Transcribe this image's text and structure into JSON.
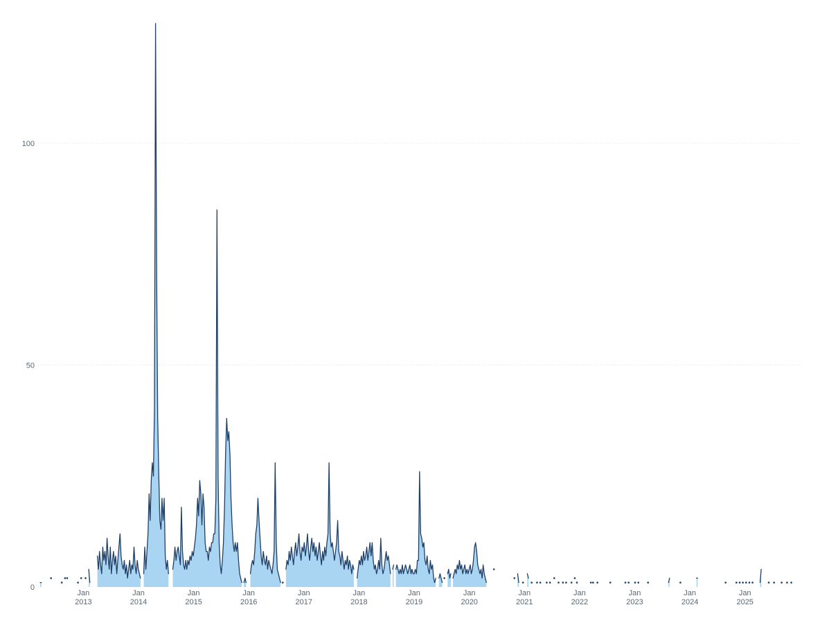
{
  "chart_data": {
    "type": "area",
    "title": "",
    "xlabel": "",
    "ylabel": "",
    "legend": "none",
    "grid": "horizontal-dotted",
    "x_step": "week",
    "ylim": [
      0,
      129
    ],
    "y_axis": {
      "values": [
        0,
        50,
        100
      ],
      "tick_labels": [
        "0",
        "50",
        "100"
      ]
    },
    "x_axis": {
      "tick_labels": [
        {
          "month": "Jan",
          "year": "2013"
        },
        {
          "month": "Jan",
          "year": "2014"
        },
        {
          "month": "Jan",
          "year": "2015"
        },
        {
          "month": "Jan",
          "year": "2016"
        },
        {
          "month": "Jan",
          "year": "2017"
        },
        {
          "month": "Jan",
          "year": "2018"
        },
        {
          "month": "Jan",
          "year": "2019"
        },
        {
          "month": "Jan",
          "year": "2020"
        },
        {
          "month": "Jan",
          "year": "2021"
        },
        {
          "month": "Jan",
          "year": "2022"
        },
        {
          "month": "Jan",
          "year": "2023"
        },
        {
          "month": "Jan",
          "year": "2024"
        },
        {
          "month": "Jan",
          "year": "2025"
        }
      ]
    },
    "colors": {
      "line": "#1f3f66",
      "fill": "#a9d4f2",
      "grid": "#e0e0e0",
      "tick_text": "#5b6672"
    },
    "series": [
      {
        "values": [
          0,
          0,
          1,
          1,
          0,
          0,
          0,
          0,
          0,
          0,
          0,
          0,
          2,
          0,
          0,
          0,
          0,
          0,
          0,
          0,
          0,
          0,
          1,
          0,
          0,
          2,
          0,
          2,
          0,
          0,
          0,
          0,
          0,
          0,
          0,
          0,
          0,
          1,
          0,
          0,
          2,
          0,
          0,
          0,
          2,
          0,
          0,
          4,
          1,
          0,
          0,
          0,
          0,
          0,
          0,
          7,
          4,
          8,
          5,
          3,
          9,
          6,
          8,
          5,
          11,
          7,
          4,
          9,
          3,
          6,
          8,
          5,
          7,
          3,
          6,
          9,
          12,
          7,
          5,
          4,
          6,
          3,
          5,
          2,
          4,
          6,
          3,
          5,
          4,
          9,
          5,
          3,
          6,
          4,
          3,
          2,
          0,
          0,
          3,
          9,
          4,
          8,
          12,
          21,
          15,
          24,
          28,
          25,
          40,
          127,
          70,
          38,
          25,
          15,
          13,
          20,
          15,
          20,
          7,
          4,
          6,
          3,
          0,
          0,
          0,
          4,
          6,
          9,
          6,
          8,
          9,
          7,
          5,
          18,
          8,
          5,
          4,
          6,
          4,
          6,
          5,
          7,
          6,
          8,
          7,
          9,
          11,
          14,
          20,
          16,
          24,
          21,
          14,
          21,
          18,
          10,
          8,
          8,
          6,
          9,
          8,
          10,
          10,
          12,
          12,
          20,
          85,
          25,
          10,
          5,
          3,
          6,
          10,
          18,
          30,
          38,
          33,
          35,
          30,
          20,
          14,
          10,
          8,
          10,
          8,
          10,
          6,
          3,
          2,
          1,
          0,
          1,
          2,
          1,
          0,
          0,
          0,
          3,
          5,
          6,
          5,
          8,
          12,
          14,
          20,
          15,
          11,
          7,
          5,
          8,
          6,
          5,
          7,
          4,
          6,
          5,
          4,
          3,
          5,
          8,
          28,
          10,
          4,
          3,
          2,
          1,
          0,
          1,
          0,
          0,
          4,
          6,
          5,
          8,
          6,
          9,
          7,
          5,
          8,
          10,
          7,
          9,
          12,
          8,
          6,
          9,
          8,
          10,
          7,
          9,
          12,
          8,
          6,
          9,
          11,
          8,
          10,
          7,
          9,
          6,
          8,
          10,
          7,
          5,
          8,
          6,
          9,
          7,
          10,
          12,
          28,
          12,
          9,
          10,
          8,
          6,
          8,
          10,
          15,
          8,
          7,
          5,
          8,
          6,
          4,
          6,
          5,
          7,
          4,
          6,
          5,
          3,
          5,
          4,
          0,
          0,
          2,
          4,
          6,
          5,
          7,
          5,
          8,
          6,
          7,
          9,
          6,
          8,
          10,
          7,
          10,
          6,
          4,
          5,
          3,
          4,
          6,
          4,
          11,
          5,
          3,
          4,
          6,
          8,
          6,
          7,
          5,
          3,
          0,
          4,
          5,
          0,
          4,
          5,
          4,
          3,
          4,
          3,
          5,
          3,
          4,
          5,
          4,
          3,
          4,
          5,
          3,
          4,
          3,
          3,
          4,
          3,
          6,
          6,
          26,
          12,
          11,
          9,
          10,
          6,
          5,
          7,
          4,
          3,
          6,
          4,
          5,
          2,
          1,
          2,
          0,
          0,
          2,
          3,
          2,
          1,
          0,
          2,
          0,
          0,
          3,
          4,
          2,
          3,
          0,
          2,
          3,
          4,
          3,
          5,
          4,
          6,
          4,
          5,
          3,
          4,
          5,
          3,
          4,
          3,
          4,
          5,
          3,
          4,
          6,
          9,
          10,
          8,
          5,
          4,
          3,
          4,
          2,
          5,
          3,
          2,
          1,
          0,
          0,
          0,
          0,
          0,
          0,
          4,
          0,
          0,
          0,
          0,
          0,
          0,
          0,
          0,
          0,
          0,
          0,
          0,
          0,
          0,
          0,
          0,
          0,
          0,
          2,
          0,
          0,
          3,
          1,
          0,
          0,
          0,
          1,
          0,
          0,
          0,
          3,
          2,
          0,
          0,
          1,
          0,
          0,
          0,
          0,
          1,
          0,
          0,
          1,
          0,
          0,
          0,
          0,
          0,
          1,
          0,
          0,
          1,
          0,
          0,
          0,
          2,
          0,
          0,
          0,
          1,
          0,
          0,
          0,
          1,
          0,
          0,
          1,
          0,
          0,
          0,
          0,
          1,
          0,
          0,
          2,
          0,
          1,
          0,
          0,
          0,
          0,
          0,
          0,
          0,
          0,
          0,
          0,
          0,
          0,
          1,
          0,
          1,
          0,
          0,
          0,
          1,
          0,
          0,
          0,
          0,
          0,
          0,
          0,
          0,
          0,
          0,
          0,
          1,
          0,
          0,
          0,
          0,
          0,
          0,
          0,
          0,
          0,
          0,
          0,
          0,
          0,
          1,
          0,
          0,
          1,
          0,
          0,
          0,
          0,
          0,
          1,
          0,
          0,
          1,
          0,
          0,
          0,
          0,
          0,
          0,
          0,
          0,
          1,
          0,
          0,
          0,
          0,
          0,
          0,
          0,
          0,
          0,
          0,
          0,
          0,
          0,
          0,
          0,
          0,
          0,
          0,
          1,
          2,
          0,
          0,
          0,
          0,
          0,
          0,
          0,
          0,
          0,
          1,
          0,
          0,
          0,
          0,
          0,
          0,
          0,
          0,
          0,
          0,
          0,
          0,
          0,
          0,
          2,
          2,
          0,
          0,
          0,
          0,
          0,
          0,
          0,
          0,
          0,
          0,
          0,
          0,
          0,
          0,
          0,
          0,
          0,
          0,
          0,
          0,
          0,
          0,
          0,
          0,
          0,
          1,
          0,
          0,
          0,
          0,
          0,
          0,
          0,
          0,
          0,
          1,
          0,
          0,
          1,
          0,
          0,
          1,
          0,
          0,
          1,
          0,
          0,
          1,
          0,
          0,
          1,
          0,
          0,
          0,
          0,
          0,
          0,
          1,
          4,
          0,
          0,
          0,
          0,
          0,
          0,
          1,
          0,
          0,
          0,
          0,
          1,
          0,
          0,
          0,
          0,
          0,
          0,
          1,
          0,
          0,
          0,
          0,
          1,
          0,
          0,
          0,
          1,
          0,
          0,
          0,
          0,
          0,
          0
        ]
      }
    ]
  }
}
